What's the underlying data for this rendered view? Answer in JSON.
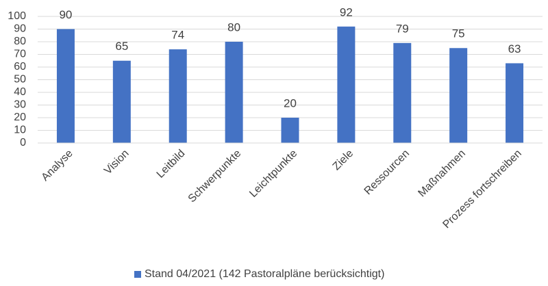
{
  "chart_data": {
    "type": "bar",
    "categories": [
      "Analyse",
      "Vision",
      "Leitbild",
      "Schwerpunkte",
      "Leichtpunkte",
      "Ziele",
      "Ressourcen",
      "Maßnahmen",
      "Prozess fortschreiben"
    ],
    "series": [
      {
        "name": "Stand 04/2021 (142 Pastoralpläne berücksichtigt)",
        "color": "#4472c4",
        "values": [
          90,
          65,
          74,
          80,
          20,
          92,
          79,
          75,
          63
        ]
      }
    ],
    "ylim": [
      0,
      100
    ],
    "yticks": [
      0,
      10,
      20,
      30,
      40,
      50,
      60,
      70,
      80,
      90,
      100
    ],
    "grid": true,
    "legend": "bottom"
  }
}
